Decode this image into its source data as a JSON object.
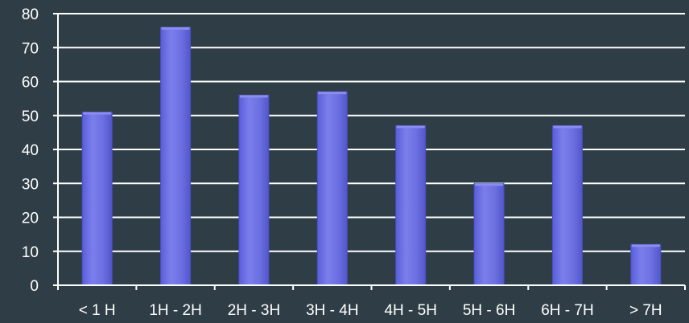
{
  "colors": {
    "background": "#2f3e46",
    "bar_fill": "#6b6fe0",
    "bar_highlight": "#8a8ef0",
    "bar_edge": "#4a4ec0",
    "axis": "#ffffff",
    "text": "#ffffff"
  },
  "chart_data": {
    "type": "bar",
    "title": "",
    "xlabel": "",
    "ylabel": "",
    "categories": [
      "< 1 H",
      "1H - 2H",
      "2H - 3H",
      "3H - 4H",
      "4H - 5H",
      "5H - 6H",
      "6H - 7H",
      "> 7H"
    ],
    "values": [
      51,
      76,
      56,
      57,
      47,
      30,
      47,
      12
    ],
    "ylim": [
      0,
      80
    ],
    "yticks": [
      0,
      10,
      20,
      30,
      40,
      50,
      60,
      70,
      80
    ],
    "grid": true,
    "legend": "none"
  }
}
